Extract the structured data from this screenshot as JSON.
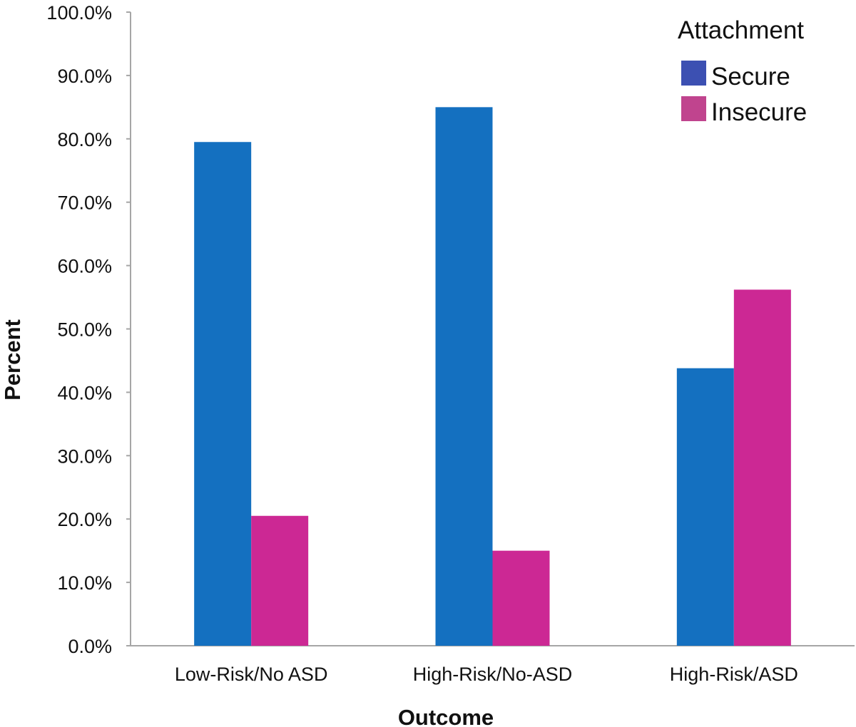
{
  "chart_data": {
    "type": "bar",
    "title": "",
    "xlabel": "Outcome",
    "ylabel": "Percent",
    "ylim": [
      0,
      100
    ],
    "yticks": [
      "0.0%",
      "10.0%",
      "20.0%",
      "30.0%",
      "40.0%",
      "50.0%",
      "60.0%",
      "70.0%",
      "80.0%",
      "90.0%",
      "100.0%"
    ],
    "grid": false,
    "legend_title": "Attachment",
    "legend_position": "top-right",
    "categories": [
      "Low-Risk/No ASD",
      "High-Risk/No-ASD",
      "High-Risk/ASD"
    ],
    "series": [
      {
        "name": "Secure",
        "color": "#1470c0",
        "legend_color": "#3c50b2",
        "values": [
          79.5,
          85.0,
          43.8
        ]
      },
      {
        "name": "Insecure",
        "color": "#cc2894",
        "legend_color": "#c0448e",
        "values": [
          20.5,
          15.0,
          56.2
        ]
      }
    ]
  }
}
